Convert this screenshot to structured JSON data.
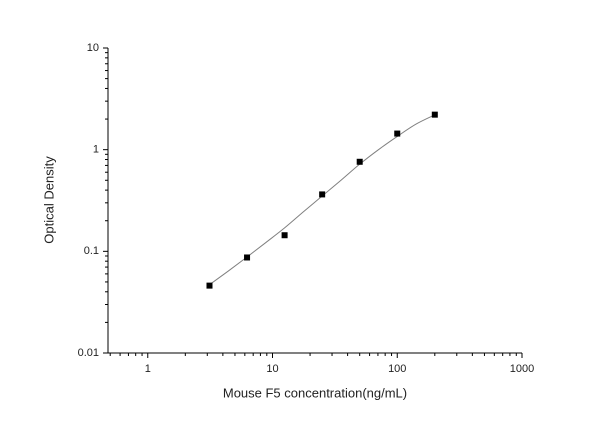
{
  "chart_data": {
    "type": "scatter",
    "x_label": "Mouse F5 concentration(ng/mL)",
    "y_label": "Optical Density",
    "xlog": true,
    "ylog": true,
    "xlim": [
      0.48,
      1000
    ],
    "ylim": [
      0.01,
      10
    ],
    "xticks": [
      1,
      10,
      100,
      1000
    ],
    "yticks": [
      0.01,
      0.1,
      1,
      10
    ],
    "xminorticks": [
      0.5,
      0.6,
      0.7,
      0.8,
      0.9,
      2,
      3,
      4,
      5,
      6,
      7,
      8,
      9,
      20,
      30,
      40,
      50,
      60,
      70,
      80,
      90,
      200,
      300,
      400,
      500,
      600,
      700,
      800,
      900
    ],
    "yminorticks": [
      0.02,
      0.03,
      0.04,
      0.05,
      0.06,
      0.07,
      0.08,
      0.09,
      0.2,
      0.3,
      0.4,
      0.5,
      0.6,
      0.7,
      0.8,
      0.9,
      2,
      3,
      4,
      5,
      6,
      7,
      8,
      9
    ],
    "series": [
      {
        "kind": "points",
        "color": "#000000",
        "x": [
          3.125,
          6.25,
          12.5,
          25,
          50,
          100,
          200
        ],
        "values": [
          0.046,
          0.087,
          0.144,
          0.363,
          0.76,
          1.44,
          2.21
        ]
      },
      {
        "kind": "curve",
        "color": "#808080",
        "x": [
          3.125,
          4.42,
          6.25,
          8.84,
          12.5,
          17.7,
          25,
          35.4,
          50,
          70.7,
          100,
          141,
          200
        ],
        "values": [
          0.047,
          0.064,
          0.088,
          0.122,
          0.17,
          0.245,
          0.35,
          0.5,
          0.72,
          1.0,
          1.35,
          1.78,
          2.2
        ]
      }
    ]
  }
}
